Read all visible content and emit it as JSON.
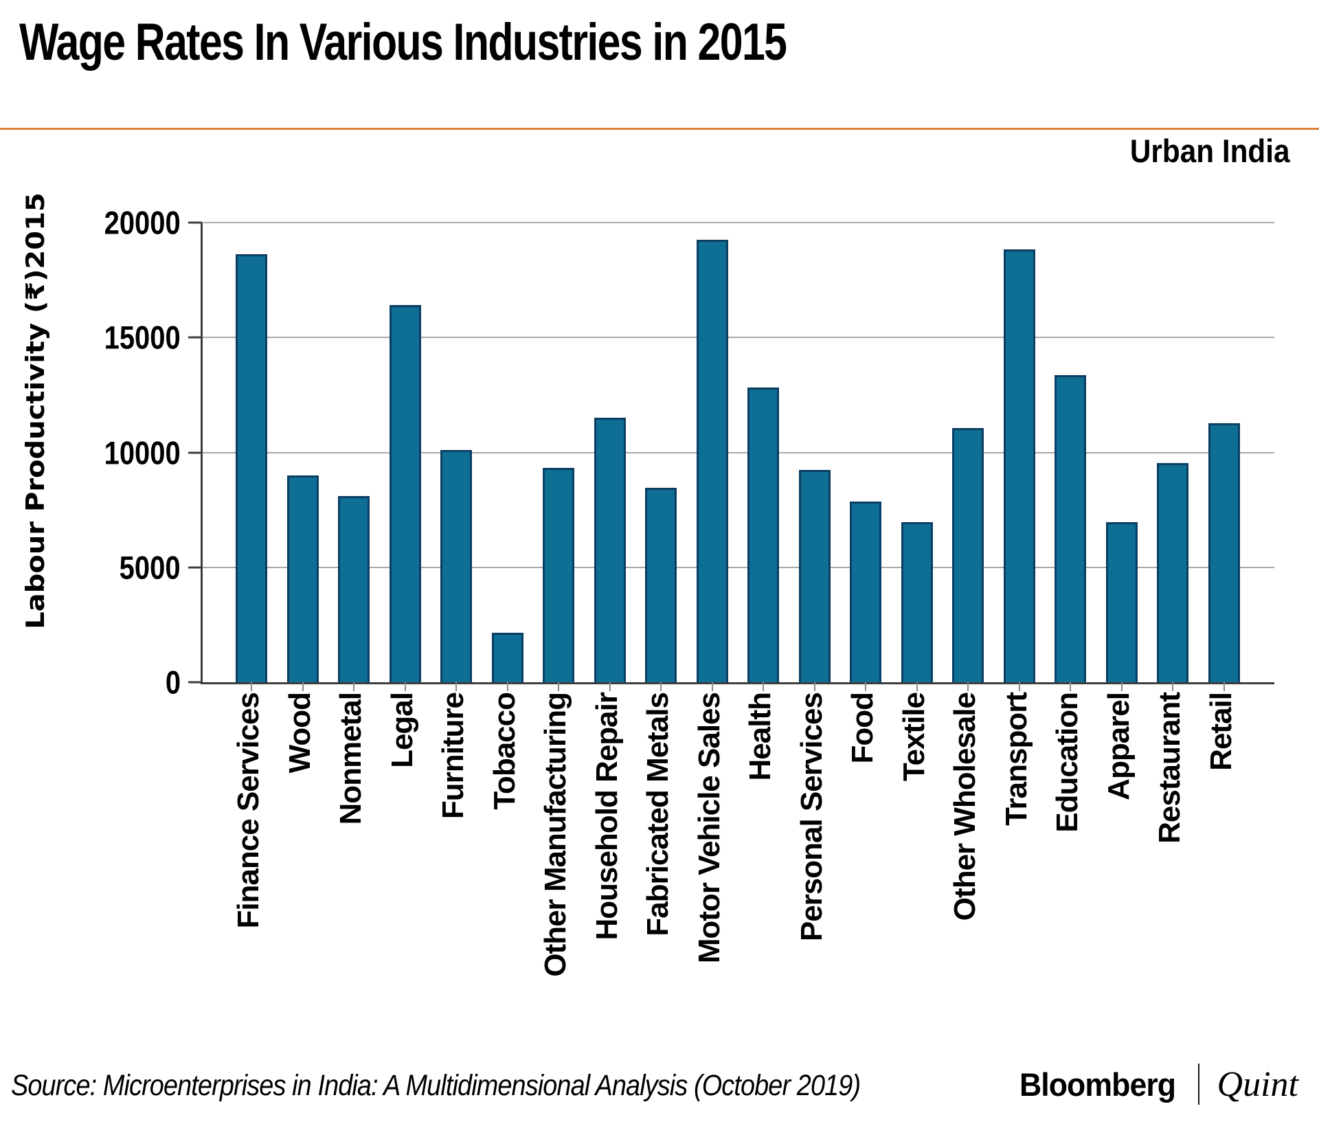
{
  "header": {
    "title": "Wage Rates In Various Industries in 2015",
    "region_label": "Urban India"
  },
  "chart_data": {
    "type": "bar",
    "title": "Wage Rates In Various Industries in 2015",
    "annotation": "Urban India",
    "xlabel": "",
    "ylabel": "Labour Productivity (₹)2015",
    "ylim": [
      0,
      20000
    ],
    "yticks": [
      20000,
      15000,
      10000,
      5000,
      0
    ],
    "grid": true,
    "legend_position": "none",
    "categories": [
      "Finance Services",
      "Wood",
      "Nonmetal",
      "Legal",
      "Furniture",
      "Tobacco",
      "Other Manufacturing",
      "Household Repair",
      "Fabricated Metals",
      "Motor Vehicle Sales",
      "Health",
      "Personal Services",
      "Food",
      "Textile",
      "Other Wholesale",
      "Transport",
      "Education",
      "Apparel",
      "Restaurant",
      "Retail"
    ],
    "values": [
      18620,
      9000,
      8100,
      16400,
      10110,
      2140,
      9330,
      11520,
      8470,
      19240,
      12820,
      9250,
      7860,
      6960,
      11060,
      18820,
      13350,
      6960,
      9530,
      11280
    ]
  },
  "footer": {
    "source": "Source: Microenterprises in India: A Multidimensional Analysis (October 2019)",
    "brand_primary": "Bloomberg",
    "brand_secondary": "Quint"
  },
  "colors": {
    "bar_fill": "#0E6E93",
    "bar_border": "#0B3E63",
    "divider_orange": "#E08040",
    "gridline": "#A8A8A8",
    "axis": "#3D3D3D",
    "xtick": "#8A8A8A",
    "text": "#000000"
  }
}
